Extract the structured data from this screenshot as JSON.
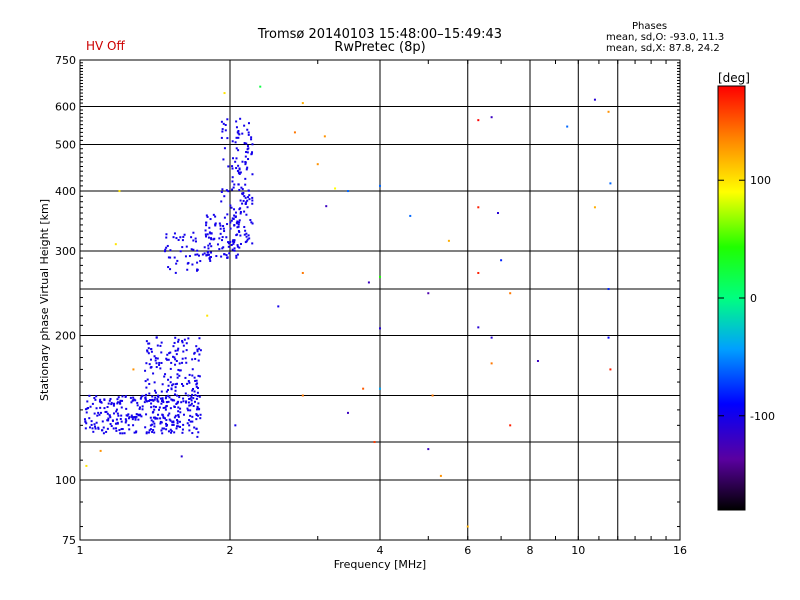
{
  "header": {
    "hv_status": "HV Off",
    "title_line1": "Tromsø 20140103 15:48:00–15:49:43",
    "title_line2": "RwPretec (8p)",
    "phases_title": "Phases",
    "phases_line1": "mean, sd,O: -93.0, 11.3",
    "phases_line2": "mean, sd,X:  87.8, 24.2"
  },
  "colorbar": {
    "label": "[deg]",
    "ticks": [
      {
        "value": 100,
        "label": "100"
      },
      {
        "value": 0,
        "label": "0"
      },
      {
        "value": -100,
        "label": "-100"
      }
    ],
    "range": [
      -180,
      180
    ]
  },
  "chart_data": {
    "type": "scatter",
    "title": "Tromsø 20140103 15:48:00–15:49:43",
    "subtitle": "RwPretec (8p)",
    "xlabel": "Frequency [MHz]",
    "ylabel": "Stationary phase Virtual Height [km]",
    "x_scale": "log",
    "y_scale": "log",
    "xlim": [
      1,
      16
    ],
    "ylim": [
      75,
      750
    ],
    "x_ticks": [
      {
        "value": 1,
        "label": "1"
      },
      {
        "value": 2,
        "label": "2"
      },
      {
        "value": 4,
        "label": "4"
      },
      {
        "value": 6,
        "label": "6"
      },
      {
        "value": 8,
        "label": "8"
      },
      {
        "value": 10,
        "label": "10"
      },
      {
        "value": 16,
        "label": "16"
      }
    ],
    "x_grid": [
      2,
      4,
      6,
      8,
      10,
      12
    ],
    "y_ticks": [
      {
        "value": 75,
        "label": "75"
      },
      {
        "value": 100,
        "label": "100"
      },
      {
        "value": 200,
        "label": "200"
      },
      {
        "value": 300,
        "label": "300"
      },
      {
        "value": 400,
        "label": "400"
      },
      {
        "value": 500,
        "label": "500"
      },
      {
        "value": 600,
        "label": "600"
      },
      {
        "value": 750,
        "label": "750"
      }
    ],
    "y_grid": [
      100,
      120,
      150,
      200,
      250,
      300,
      400,
      500,
      600
    ],
    "grid": true,
    "color_by": "phase_deg",
    "clusters": [
      {
        "f_range": [
          1.02,
          1.75
        ],
        "h_range": [
          125,
          150
        ],
        "phase": -100,
        "count": 320
      },
      {
        "f_range": [
          1.35,
          1.75
        ],
        "h_range": [
          145,
          200
        ],
        "phase": -100,
        "count": 160
      },
      {
        "f_range": [
          1.48,
          1.85
        ],
        "h_range": [
          270,
          330
        ],
        "phase": -100,
        "count": 60
      },
      {
        "f_range": [
          1.78,
          2.1
        ],
        "h_range": [
          290,
          360
        ],
        "phase": -100,
        "count": 90
      },
      {
        "f_range": [
          2.0,
          2.22
        ],
        "h_range": [
          310,
          560
        ],
        "phase": -100,
        "count": 120
      },
      {
        "f_range": [
          1.9,
          2.1
        ],
        "h_range": [
          380,
          600
        ],
        "phase": -100,
        "count": 25
      }
    ],
    "points": [
      {
        "f": 1.03,
        "h": 107,
        "phase": 100
      },
      {
        "f": 1.1,
        "h": 115,
        "phase": 130
      },
      {
        "f": 1.18,
        "h": 310,
        "phase": 100
      },
      {
        "f": 1.2,
        "h": 400,
        "phase": 100
      },
      {
        "f": 1.28,
        "h": 170,
        "phase": 130
      },
      {
        "f": 1.6,
        "h": 112,
        "phase": -110
      },
      {
        "f": 1.72,
        "h": 123,
        "phase": -100
      },
      {
        "f": 1.8,
        "h": 220,
        "phase": 100
      },
      {
        "f": 1.95,
        "h": 640,
        "phase": 100
      },
      {
        "f": 2.05,
        "h": 130,
        "phase": -100
      },
      {
        "f": 2.3,
        "h": 660,
        "phase": 20
      },
      {
        "f": 2.5,
        "h": 230,
        "phase": -100
      },
      {
        "f": 2.7,
        "h": 530,
        "phase": 140
      },
      {
        "f": 2.8,
        "h": 610,
        "phase": 120
      },
      {
        "f": 2.8,
        "h": 270,
        "phase": 140
      },
      {
        "f": 2.8,
        "h": 150,
        "phase": 140
      },
      {
        "f": 3.0,
        "h": 455,
        "phase": 130
      },
      {
        "f": 3.1,
        "h": 520,
        "phase": 130
      },
      {
        "f": 3.12,
        "h": 372,
        "phase": -120
      },
      {
        "f": 3.25,
        "h": 405,
        "phase": 90
      },
      {
        "f": 3.45,
        "h": 400,
        "phase": -60
      },
      {
        "f": 3.45,
        "h": 138,
        "phase": -120
      },
      {
        "f": 3.7,
        "h": 155,
        "phase": 150
      },
      {
        "f": 3.8,
        "h": 258,
        "phase": -120
      },
      {
        "f": 3.9,
        "h": 120,
        "phase": 160
      },
      {
        "f": 4.0,
        "h": 265,
        "phase": 40
      },
      {
        "f": 4.0,
        "h": 207,
        "phase": -110
      },
      {
        "f": 4.0,
        "h": 410,
        "phase": -60
      },
      {
        "f": 4.0,
        "h": 155,
        "phase": -40
      },
      {
        "f": 4.6,
        "h": 355,
        "phase": -60
      },
      {
        "f": 5.0,
        "h": 245,
        "phase": -130
      },
      {
        "f": 5.0,
        "h": 116,
        "phase": -120
      },
      {
        "f": 5.1,
        "h": 150,
        "phase": 140
      },
      {
        "f": 5.3,
        "h": 102,
        "phase": 130
      },
      {
        "f": 5.5,
        "h": 315,
        "phase": 120
      },
      {
        "f": 6.0,
        "h": 80,
        "phase": 120
      },
      {
        "f": 6.3,
        "h": 562,
        "phase": 180
      },
      {
        "f": 6.3,
        "h": 370,
        "phase": 170
      },
      {
        "f": 6.3,
        "h": 270,
        "phase": 170
      },
      {
        "f": 6.3,
        "h": 208,
        "phase": -110
      },
      {
        "f": 6.7,
        "h": 570,
        "phase": -120
      },
      {
        "f": 6.7,
        "h": 198,
        "phase": -110
      },
      {
        "f": 6.7,
        "h": 175,
        "phase": 140
      },
      {
        "f": 6.9,
        "h": 360,
        "phase": -110
      },
      {
        "f": 7.0,
        "h": 287,
        "phase": -80
      },
      {
        "f": 7.3,
        "h": 245,
        "phase": 140
      },
      {
        "f": 7.3,
        "h": 130,
        "phase": 170
      },
      {
        "f": 8.3,
        "h": 177,
        "phase": -120
      },
      {
        "f": 9.5,
        "h": 545,
        "phase": -60
      },
      {
        "f": 10.8,
        "h": 620,
        "phase": -110
      },
      {
        "f": 10.8,
        "h": 370,
        "phase": 120
      },
      {
        "f": 11.5,
        "h": 585,
        "phase": 130
      },
      {
        "f": 11.6,
        "h": 415,
        "phase": -60
      },
      {
        "f": 11.5,
        "h": 250,
        "phase": -80
      },
      {
        "f": 11.5,
        "h": 198,
        "phase": -90
      },
      {
        "f": 11.6,
        "h": 170,
        "phase": 170
      }
    ]
  }
}
